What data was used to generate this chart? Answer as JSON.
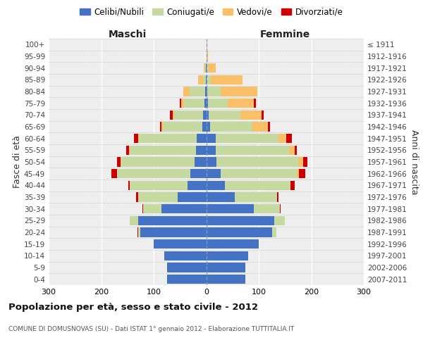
{
  "age_groups": [
    "0-4",
    "5-9",
    "10-14",
    "15-19",
    "20-24",
    "25-29",
    "30-34",
    "35-39",
    "40-44",
    "45-49",
    "50-54",
    "55-59",
    "60-64",
    "65-69",
    "70-74",
    "75-79",
    "80-84",
    "85-89",
    "90-94",
    "95-99",
    "100+"
  ],
  "birth_years": [
    "2007-2011",
    "2002-2006",
    "1997-2001",
    "1992-1996",
    "1987-1991",
    "1982-1986",
    "1977-1981",
    "1972-1976",
    "1967-1971",
    "1962-1966",
    "1957-1961",
    "1952-1956",
    "1947-1951",
    "1942-1946",
    "1937-1941",
    "1932-1936",
    "1927-1931",
    "1922-1926",
    "1917-1921",
    "1912-1916",
    "≤ 1911"
  ],
  "colors": {
    "celibi": "#4472C4",
    "coniugati": "#C6D9A0",
    "vedovi": "#FAC069",
    "divorziati": "#CC0000"
  },
  "maschi": {
    "celibi": [
      75,
      75,
      80,
      100,
      125,
      130,
      85,
      55,
      35,
      30,
      22,
      20,
      18,
      8,
      6,
      4,
      2,
      1,
      1,
      0,
      0
    ],
    "coniugati": [
      0,
      0,
      0,
      0,
      5,
      15,
      35,
      75,
      110,
      140,
      140,
      125,
      110,
      75,
      55,
      38,
      30,
      5,
      2,
      0,
      0
    ],
    "vedovi": [
      0,
      0,
      0,
      0,
      0,
      0,
      0,
      0,
      0,
      0,
      1,
      2,
      2,
      2,
      3,
      5,
      12,
      10,
      2,
      0,
      0
    ],
    "divorziati": [
      0,
      0,
      0,
      0,
      1,
      0,
      2,
      3,
      3,
      10,
      7,
      5,
      8,
      3,
      5,
      3,
      0,
      0,
      0,
      0,
      0
    ]
  },
  "femmine": {
    "celibi": [
      75,
      75,
      80,
      100,
      125,
      130,
      90,
      55,
      35,
      28,
      20,
      18,
      18,
      8,
      5,
      3,
      2,
      1,
      0,
      0,
      0
    ],
    "coniugati": [
      0,
      0,
      0,
      0,
      8,
      20,
      50,
      80,
      125,
      145,
      155,
      140,
      120,
      80,
      60,
      38,
      25,
      8,
      3,
      0,
      0
    ],
    "vedovi": [
      0,
      0,
      0,
      0,
      0,
      0,
      0,
      0,
      0,
      3,
      10,
      10,
      15,
      30,
      40,
      50,
      70,
      60,
      15,
      3,
      2
    ],
    "divorziati": [
      0,
      0,
      0,
      0,
      0,
      0,
      2,
      3,
      8,
      12,
      8,
      5,
      10,
      3,
      5,
      3,
      0,
      0,
      0,
      0,
      0
    ]
  },
  "title": "Popolazione per età, sesso e stato civile - 2012",
  "subtitle": "COMUNE DI DOMUSNOVAS (SU) - Dati ISTAT 1° gennaio 2012 - Elaborazione TUTTITALIA.IT",
  "ylabel_left": "Fasce di età",
  "ylabel_right": "Anni di nascita",
  "xlabel_left": "Maschi",
  "xlabel_right": "Femmine",
  "xlim": 300
}
